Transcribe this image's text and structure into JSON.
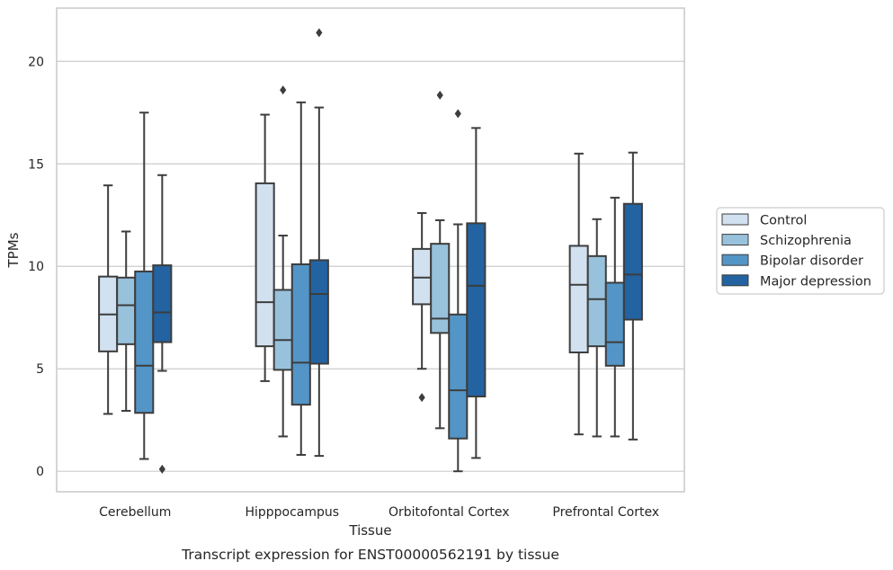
{
  "chart_data": {
    "type": "box",
    "xlabel": "Tissue",
    "ylabel": "TPMs",
    "caption": "Transcript expression for ENST00000562191 by tissue",
    "ylim": [
      -1,
      22.6
    ],
    "yticks": [
      0,
      5,
      10,
      15,
      20
    ],
    "grid": "horizontal",
    "legend_position": "right",
    "categories": [
      "Cerebellum",
      "Hipppocampus",
      "Orbitofontal Cortex",
      "Prefrontal Cortex"
    ],
    "series": [
      {
        "name": "Control",
        "color": "#d1e1f0",
        "boxes": [
          {
            "whislo": 2.8,
            "q1": 5.85,
            "med": 7.65,
            "q3": 9.5,
            "whishi": 13.95,
            "fliers": []
          },
          {
            "whislo": 4.4,
            "q1": 6.1,
            "med": 8.25,
            "q3": 14.05,
            "whishi": 17.4,
            "fliers": []
          },
          {
            "whislo": 5.0,
            "q1": 8.15,
            "med": 9.45,
            "q3": 10.85,
            "whishi": 12.6,
            "fliers": [
              3.6
            ]
          },
          {
            "whislo": 1.8,
            "q1": 5.8,
            "med": 9.1,
            "q3": 11.0,
            "whishi": 15.5,
            "fliers": []
          }
        ]
      },
      {
        "name": "Schizophrenia",
        "color": "#98c1db",
        "boxes": [
          {
            "whislo": 2.95,
            "q1": 6.2,
            "med": 8.1,
            "q3": 9.45,
            "whishi": 11.7,
            "fliers": []
          },
          {
            "whislo": 1.7,
            "q1": 4.95,
            "med": 6.4,
            "q3": 8.85,
            "whishi": 11.5,
            "fliers": [
              18.6
            ]
          },
          {
            "whislo": 2.1,
            "q1": 6.75,
            "med": 7.45,
            "q3": 11.1,
            "whishi": 12.25,
            "fliers": [
              18.35
            ]
          },
          {
            "whislo": 1.7,
            "q1": 6.1,
            "med": 8.4,
            "q3": 10.5,
            "whishi": 12.3,
            "fliers": []
          }
        ]
      },
      {
        "name": "Bipolar disorder",
        "color": "#5395c6",
        "boxes": [
          {
            "whislo": 0.6,
            "q1": 2.85,
            "med": 5.15,
            "q3": 9.75,
            "whishi": 17.5,
            "fliers": []
          },
          {
            "whislo": 0.8,
            "q1": 3.25,
            "med": 5.3,
            "q3": 10.1,
            "whishi": 18.0,
            "fliers": []
          },
          {
            "whislo": 0.0,
            "q1": 1.6,
            "med": 3.95,
            "q3": 7.65,
            "whishi": 12.05,
            "fliers": [
              17.45
            ]
          },
          {
            "whislo": 1.7,
            "q1": 5.15,
            "med": 6.3,
            "q3": 9.2,
            "whishi": 13.35,
            "fliers": []
          }
        ]
      },
      {
        "name": "Major depression",
        "color": "#2363a1",
        "boxes": [
          {
            "whislo": 4.9,
            "q1": 6.3,
            "med": 7.75,
            "q3": 10.05,
            "whishi": 14.45,
            "fliers": [
              0.1
            ]
          },
          {
            "whislo": 0.75,
            "q1": 5.25,
            "med": 8.65,
            "q3": 10.3,
            "whishi": 17.75,
            "fliers": [
              21.4
            ]
          },
          {
            "whislo": 0.65,
            "q1": 3.65,
            "med": 9.05,
            "q3": 12.1,
            "whishi": 16.75,
            "fliers": []
          },
          {
            "whislo": 1.55,
            "q1": 7.4,
            "med": 9.6,
            "q3": 13.05,
            "whishi": 15.55,
            "fliers": []
          }
        ]
      }
    ]
  }
}
